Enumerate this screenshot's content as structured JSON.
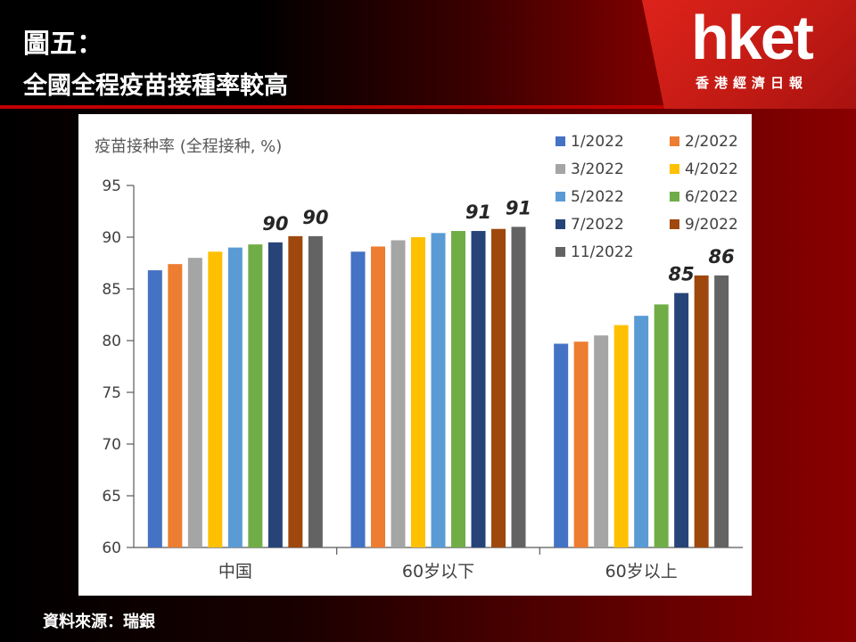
{
  "header": {
    "figure_label": "圖五：",
    "title": "全國全程疫苗接種率較高",
    "logo": "hket",
    "logo_subtitle": "香港經濟日報"
  },
  "source": "資料來源：瑞銀",
  "colors": {
    "1/2022": "#4472c4",
    "2/2022": "#ed7d31",
    "3/2022": "#a5a5a5",
    "4/2022": "#ffc000",
    "5/2022": "#5b9bd5",
    "6/2022": "#70ad47",
    "7/2022": "#264478",
    "9/2022": "#9e480e",
    "11/2022": "#636363"
  },
  "chart_data": {
    "type": "bar",
    "title": "疫苗接种率 (全程接种, %)",
    "categories": [
      "中国",
      "60岁以下",
      "60岁以上"
    ],
    "ylim": [
      60,
      95
    ],
    "yticks": [
      60,
      65,
      70,
      75,
      80,
      85,
      90,
      95
    ],
    "grid": false,
    "legend_placement": "top-right",
    "series": [
      {
        "name": "1/2022",
        "values": [
          86.8,
          88.6,
          79.7
        ]
      },
      {
        "name": "2/2022",
        "values": [
          87.4,
          89.1,
          79.9
        ]
      },
      {
        "name": "3/2022",
        "values": [
          88.0,
          89.7,
          80.5
        ]
      },
      {
        "name": "4/2022",
        "values": [
          88.6,
          90.0,
          81.5
        ]
      },
      {
        "name": "5/2022",
        "values": [
          89.0,
          90.4,
          82.4
        ]
      },
      {
        "name": "6/2022",
        "values": [
          89.3,
          90.6,
          83.5
        ]
      },
      {
        "name": "7/2022",
        "values": [
          89.5,
          90.6,
          84.6
        ]
      },
      {
        "name": "9/2022",
        "values": [
          90.1,
          90.8,
          86.3
        ]
      },
      {
        "name": "11/2022",
        "values": [
          90.1,
          91.0,
          86.3
        ]
      }
    ],
    "annotations": [
      {
        "category": 0,
        "series": 6,
        "text": "90"
      },
      {
        "category": 0,
        "series": 8,
        "text": "90"
      },
      {
        "category": 1,
        "series": 6,
        "text": "91"
      },
      {
        "category": 1,
        "series": 8,
        "text": "91"
      },
      {
        "category": 2,
        "series": 6,
        "text": "85"
      },
      {
        "category": 2,
        "series": 8,
        "text": "86"
      }
    ]
  }
}
